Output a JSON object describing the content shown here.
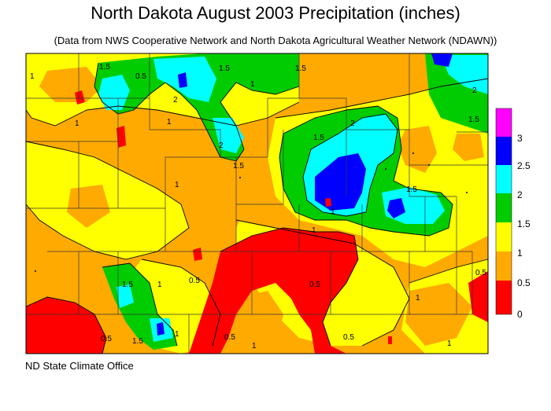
{
  "title": "North Dakota August 2003 Precipitation (inches)",
  "subtitle": "(Data from NWS Cooperative Network and North Dakota Agricultural Weather Network (NDAWN))",
  "footer": "ND State Climate Office",
  "legend": {
    "entries": [
      {
        "label": "3",
        "color": "#ff00ff"
      },
      {
        "label": "2.5",
        "color": "#0000ff"
      },
      {
        "label": "2",
        "color": "#00ffff"
      },
      {
        "label": "1.5",
        "color": "#00cc00"
      },
      {
        "label": "1",
        "color": "#ffff00"
      },
      {
        "label": "0.5",
        "color": "#ffaa00"
      },
      {
        "label": "0",
        "color": "#ff0000"
      }
    ]
  },
  "colors": {
    "lt05": "#ff0000",
    "b05_1": "#ffaa00",
    "b1_15": "#ffff00",
    "b15_2": "#00cc00",
    "b2_25": "#00ffff",
    "b25_3": "#0000ff",
    "gt3": "#ff00ff"
  },
  "contour_labels": {
    "l1": "1",
    "l2": "1.5",
    "l3": "0.5",
    "l4": "2",
    "l5": "1",
    "l6": "1.5",
    "l7": "1",
    "l8": "1.5",
    "l9": "2",
    "l10": "1.5",
    "l11": "1",
    "l12": "1",
    "l13": "1.5",
    "l14": "2",
    "l15": "1",
    "l16": "1.5",
    "l17": "0.5",
    "l18": "1",
    "l19": "0.5",
    "l20": "1",
    "l21": "0.5",
    "l22": "1.5",
    "l23": "1",
    "l24": "0.5",
    "l25": "1",
    "l26": "1.5",
    "l27": "0.5",
    "l28": "1",
    "l29": "0.5",
    "l30": "1.5",
    "l31": "2",
    "l32": "1"
  }
}
